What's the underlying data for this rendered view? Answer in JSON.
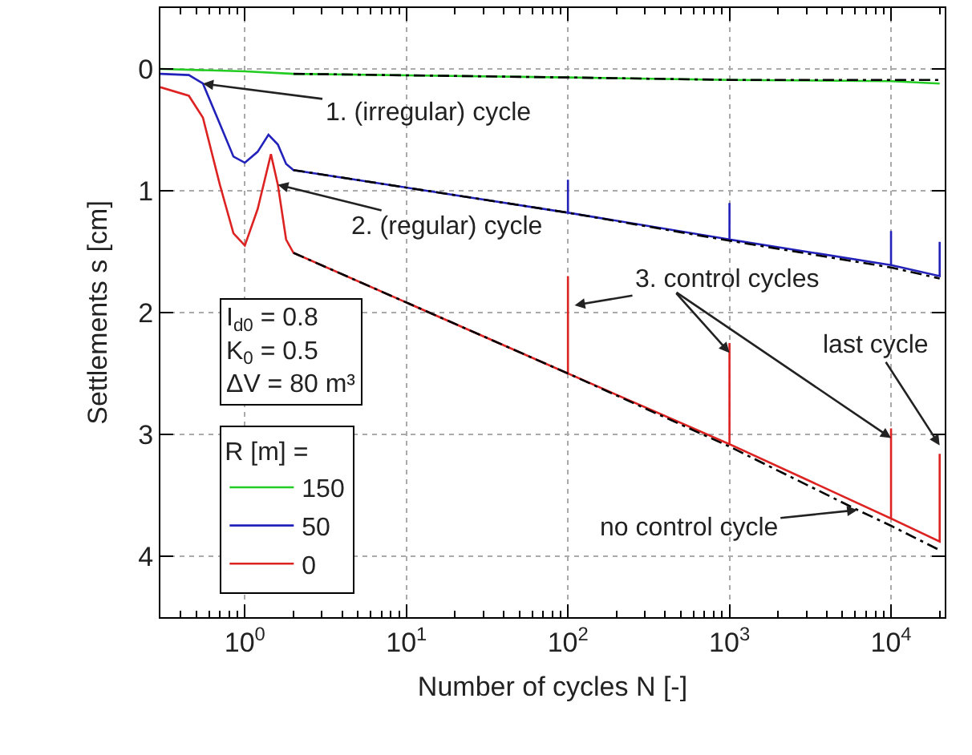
{
  "chart_data": {
    "type": "line",
    "xlabel": "Number of cycles N [-]",
    "ylabel": "Settlements s [cm]",
    "legend_title": "R [m] =",
    "legend": "bottom left",
    "grid": true,
    "log": "x",
    "line_style": "solid",
    "marker": "none",
    "xlim": [
      0.3,
      21500
    ],
    "ylim": [
      4.5,
      -0.5
    ],
    "xticks": [
      {
        "value": 1,
        "label": "10$^{0}$"
      },
      {
        "value": 10,
        "label": "10$^{1}$"
      },
      {
        "value": 100,
        "label": "10$^{2}$"
      },
      {
        "value": 1000,
        "label": "10$^{3}$"
      },
      {
        "value": 10000,
        "label": "10$^{4}$"
      }
    ],
    "yticks": [
      0,
      1,
      2,
      3,
      4
    ],
    "series": [
      {
        "name": "150",
        "color": "#22cc22",
        "x": [
          0.3,
          1,
          2,
          100,
          1000,
          10000,
          20000
        ],
        "values": [
          0.0,
          0.02,
          0.04,
          0.07,
          0.09,
          0.1,
          0.12
        ]
      },
      {
        "name": "50",
        "color": "#2222bb",
        "x": [
          0.3,
          0.45,
          0.55,
          0.7,
          0.85,
          1,
          1.2,
          1.4,
          1.6,
          1.8,
          2,
          100,
          100,
          100,
          1000,
          1000,
          1000,
          10000,
          10000,
          10000,
          20000,
          20000
        ],
        "values": [
          0.04,
          0.05,
          0.12,
          0.45,
          0.72,
          0.77,
          0.68,
          0.54,
          0.62,
          0.78,
          0.83,
          1.18,
          0.91,
          1.18,
          1.4,
          1.1,
          1.4,
          1.61,
          1.33,
          1.61,
          1.7,
          1.42
        ]
      },
      {
        "name": "0",
        "color": "#dd2222",
        "x": [
          0.3,
          0.45,
          0.55,
          0.7,
          0.85,
          1,
          1.2,
          1.45,
          1.6,
          1.8,
          2,
          100,
          100,
          100,
          1000,
          1000,
          1000,
          10000,
          10000,
          10000,
          20000,
          20000
        ],
        "values": [
          0.15,
          0.22,
          0.4,
          0.95,
          1.35,
          1.45,
          1.15,
          0.7,
          0.95,
          1.4,
          1.51,
          2.5,
          1.7,
          2.5,
          3.08,
          2.25,
          3.08,
          3.69,
          2.95,
          3.69,
          3.88,
          3.16
        ]
      },
      {
        "color": "#000000",
        "line_style": "dashed",
        "x": [
          2,
          100,
          1000,
          10000,
          20000
        ],
        "values": [
          0.04,
          0.07,
          0.09,
          0.09,
          0.09
        ]
      },
      {
        "color": "#000000",
        "line_style": "dashed",
        "x": [
          2,
          100,
          1000,
          10000,
          20000
        ],
        "values": [
          0.83,
          1.18,
          1.41,
          1.63,
          1.72
        ]
      },
      {
        "color": "#000000",
        "line_style": "dashed",
        "x": [
          2,
          100,
          1000,
          6200,
          10000,
          20000
        ],
        "values": [
          1.51,
          2.5,
          3.1,
          3.62,
          3.75,
          3.95
        ]
      }
    ],
    "annotations": [
      {
        "text": "1. (irregular) cycle",
        "x": 0.55,
        "y": 0.12
      },
      {
        "text": "2. (regular) cycle",
        "x": 1.6,
        "y": 0.95
      },
      {
        "text": "3. control cycles",
        "x": 110,
        "y": 1.94
      },
      {
        "text": "last cycle",
        "x": 20000,
        "y": 3.09
      },
      {
        "text": "no control cycle",
        "x": 6200,
        "y": 3.62
      },
      "I$_{d0}$ = 0.8",
      "K$_{0}$ = 0.5",
      "ΔV = 80 m³"
    ]
  }
}
